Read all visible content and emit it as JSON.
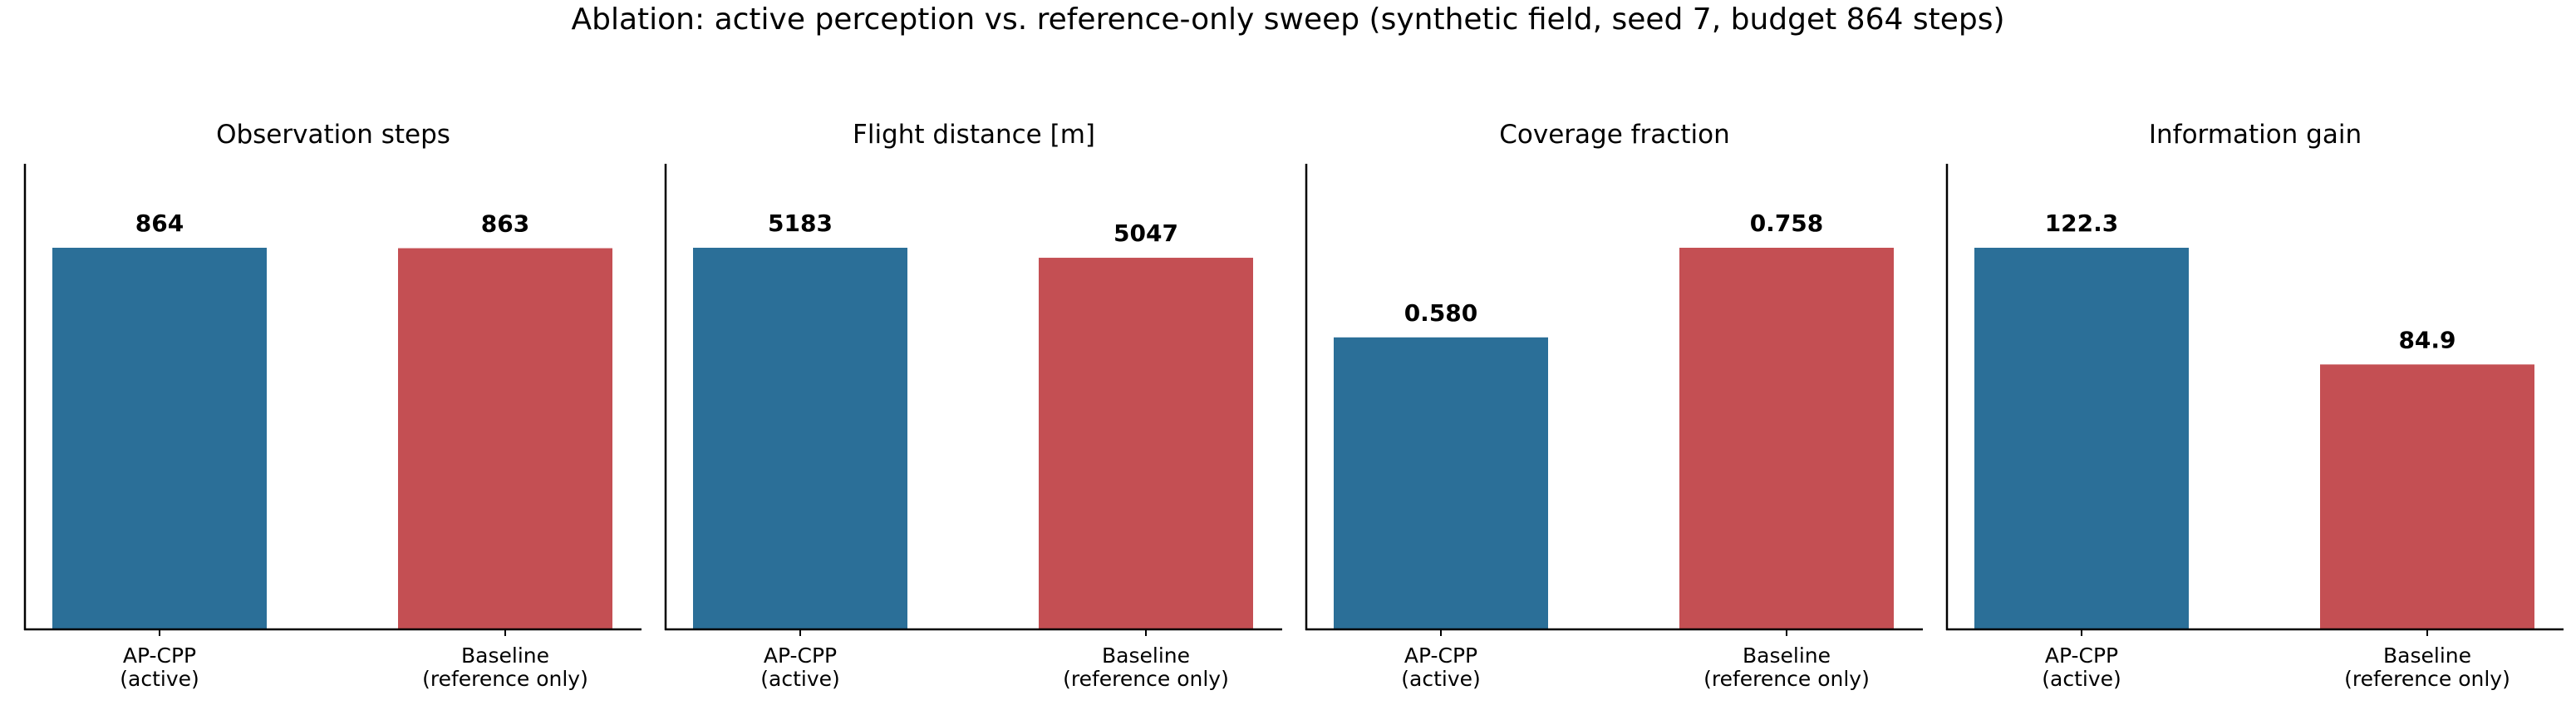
{
  "figure": {
    "title": "Ablation: active perception vs. reference-only sweep (synthetic field, seed 7, budget 864 steps)"
  },
  "colors": {
    "AP-CPP (active)": "#2b6f98",
    "Baseline (reference only)": "#c44f53"
  },
  "chart_data": [
    {
      "type": "bar",
      "title": "Observation steps",
      "categories": [
        "AP-CPP\n(active)",
        "Baseline\n(reference only)"
      ],
      "values": [
        864,
        863
      ],
      "value_labels": [
        "864",
        "863"
      ],
      "grid": false
    },
    {
      "type": "bar",
      "title": "Flight distance [m]",
      "categories": [
        "AP-CPP\n(active)",
        "Baseline\n(reference only)"
      ],
      "values": [
        5183,
        5047
      ],
      "value_labels": [
        "5183",
        "5047"
      ],
      "grid": false
    },
    {
      "type": "bar",
      "title": "Coverage fraction",
      "categories": [
        "AP-CPP\n(active)",
        "Baseline\n(reference only)"
      ],
      "values": [
        0.58,
        0.758
      ],
      "value_labels": [
        "0.580",
        "0.758"
      ],
      "grid": false
    },
    {
      "type": "bar",
      "title": "Information gain",
      "categories": [
        "AP-CPP\n(active)",
        "Baseline\n(reference only)"
      ],
      "values": [
        122.3,
        84.9
      ],
      "value_labels": [
        "122.3",
        "84.9"
      ],
      "grid": false
    }
  ]
}
